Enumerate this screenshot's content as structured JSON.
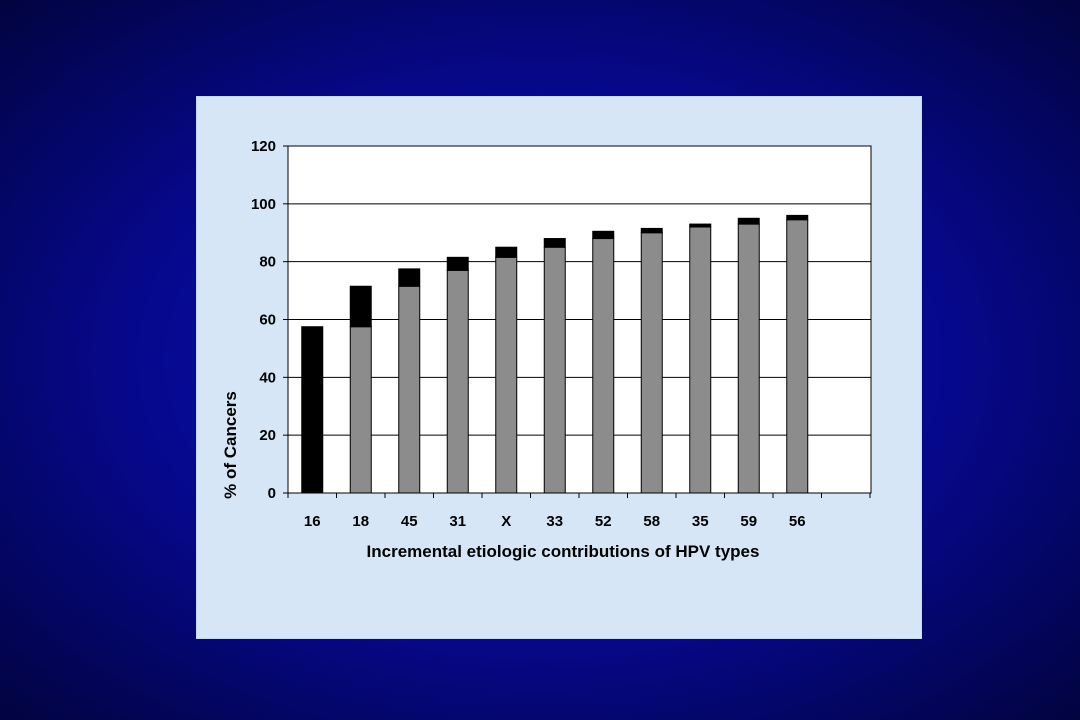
{
  "chart_data": {
    "type": "bar",
    "stacked": true,
    "title": "",
    "xlabel": "Incremental etiologic contributions of HPV types",
    "ylabel": "% of Cancers",
    "ylim": [
      0,
      120
    ],
    "yticks": [
      0,
      20,
      40,
      60,
      80,
      100,
      120
    ],
    "grid": true,
    "legend": "none",
    "categories": [
      "16",
      "18",
      "45",
      "31",
      "X",
      "33",
      "52",
      "58",
      "35",
      "59",
      "56"
    ],
    "series": [
      {
        "color": "#8c8c8c",
        "values": [
          0,
          57.5,
          71.5,
          77,
          81.5,
          85,
          88,
          90,
          92,
          93,
          94.5
        ]
      },
      {
        "color": "#000000",
        "values": [
          57.5,
          14,
          6,
          4.5,
          3.5,
          3,
          2.5,
          1.5,
          1,
          2,
          1.5
        ]
      }
    ],
    "colors": {
      "plot_background": "#ffffff",
      "panel_background": "#d6e6f7",
      "page_background": "#06088a"
    }
  }
}
